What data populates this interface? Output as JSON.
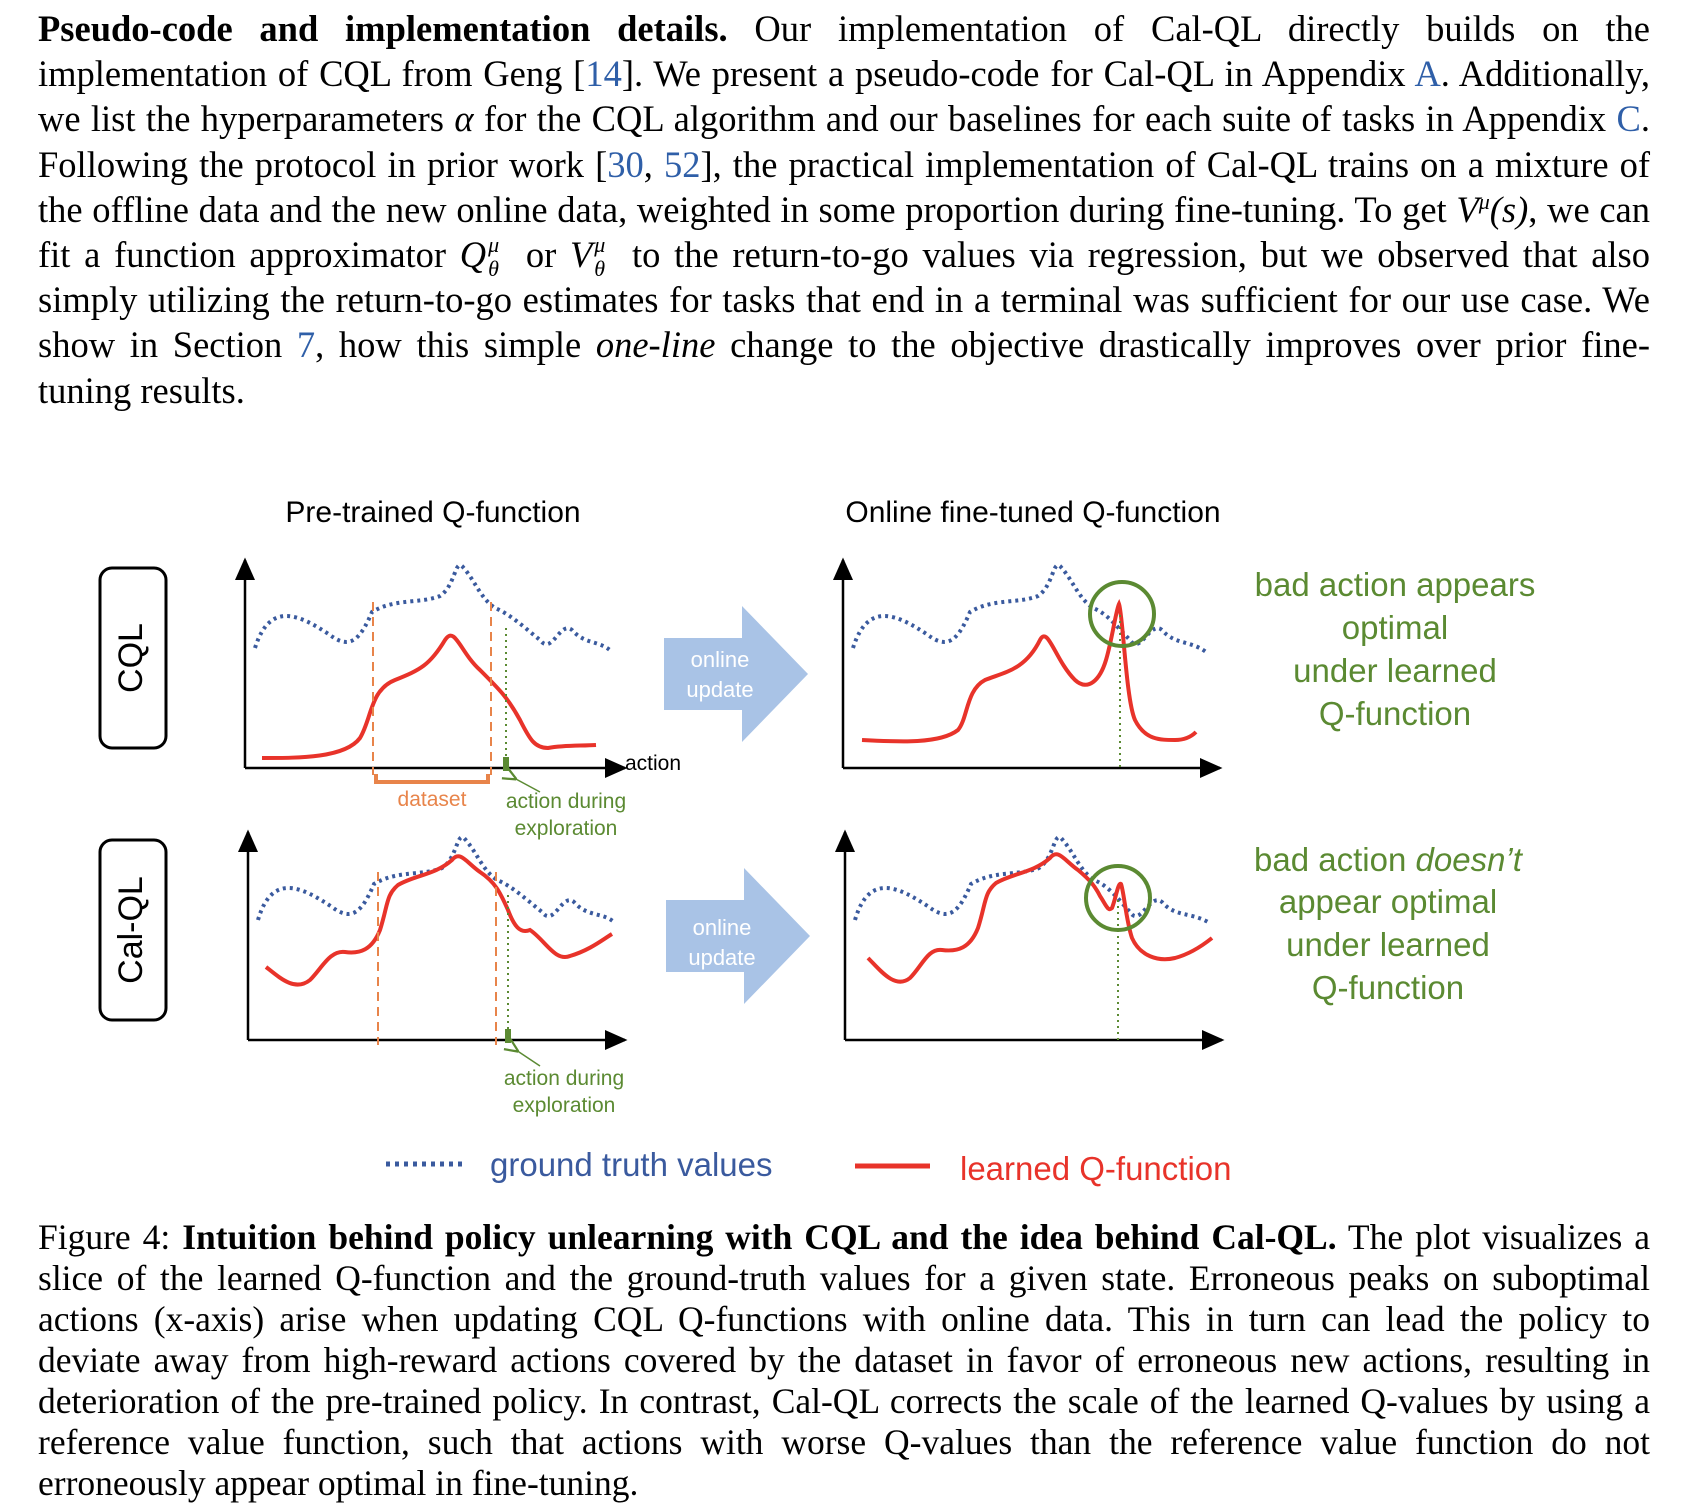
{
  "paragraph": {
    "lead": "Pseudo-code and implementation details.",
    "s1": " Our implementation of Cal-QL directly builds on the implementation of CQL from Geng [",
    "ref14": "14",
    "s2": "]. We present a pseudo-code for Cal-QL in Appendix ",
    "refA": "A",
    "s3": ". Additionally, we list the hyperparameters ",
    "alpha": "α",
    "s4": " for the CQL algorithm and our baselines for each suite of tasks in Appendix ",
    "refC": "C",
    "s5": ". Following the protocol in prior work [",
    "ref30": "30",
    "comma": ", ",
    "ref52": "52",
    "s6": "], the practical implementation of Cal-QL trains on a mixture of the offline data and the new online data, weighted in some proportion during fine-tuning. To get ",
    "vmu": "V",
    "mu": "μ",
    "vmu_arg": "(s)",
    "s7": ", we can fit a function approximator ",
    "q_theta": "Q",
    "theta": "θ",
    "or": " or ",
    "v_theta": "V",
    "s8": " to the return-to-go values via regression, but we observed that also simply utilizing the return-to-go estimates for tasks that end in a terminal was sufficient for our use case. We show in Section ",
    "ref7": "7",
    "s9": ", how this simple ",
    "oneline": "one-line",
    "s10": " change to the objective drastically improves over prior fine-tuning results."
  },
  "figure": {
    "col_title_left": "Pre-trained Q-function",
    "col_title_right": "Online fine-tuned Q-function",
    "row_label_top": "CQL",
    "row_label_bottom": "Cal-QL",
    "arrow_label_line1": "online",
    "arrow_label_line2": "update",
    "axis_label": "action",
    "dataset_label": "dataset",
    "exploration_line1": "action during",
    "exploration_line2": "exploration",
    "note_top": [
      "bad action appears",
      "optimal",
      "under learned",
      "Q-function"
    ],
    "note_bottom_pre": "bad action ",
    "note_bottom_em": "doesn’t",
    "note_bottom_rest": [
      "appear optimal",
      "under learned",
      "Q-function"
    ],
    "legend_gt": "ground truth values",
    "legend_q": "learned Q-function",
    "colors": {
      "ground_truth": "#3a5a9e",
      "learned_q": "#e8332a",
      "annotation_green": "#5b8a32",
      "dataset_orange": "#e8844a",
      "arrow_fill": "#a9c3e6"
    }
  },
  "caption": {
    "prefix": "Figure 4: ",
    "bold": "Intuition behind policy unlearning with CQL and the idea behind Cal-QL.",
    "text": " The plot visualizes a slice of the learned Q-function and the ground-truth values for a given state. Erroneous peaks on suboptimal actions (x-axis) arise when updating CQL Q-functions with online data. This in turn can lead the policy to deviate away from high-reward actions covered by the dataset in favor of erroneous new actions, resulting in deterioration of the pre-trained policy. In contrast, Cal-QL corrects the scale of the learned Q-values by using a reference value function, such that actions with worse Q-values than the reference value function do not erroneously appear optimal in fine-tuning."
  }
}
